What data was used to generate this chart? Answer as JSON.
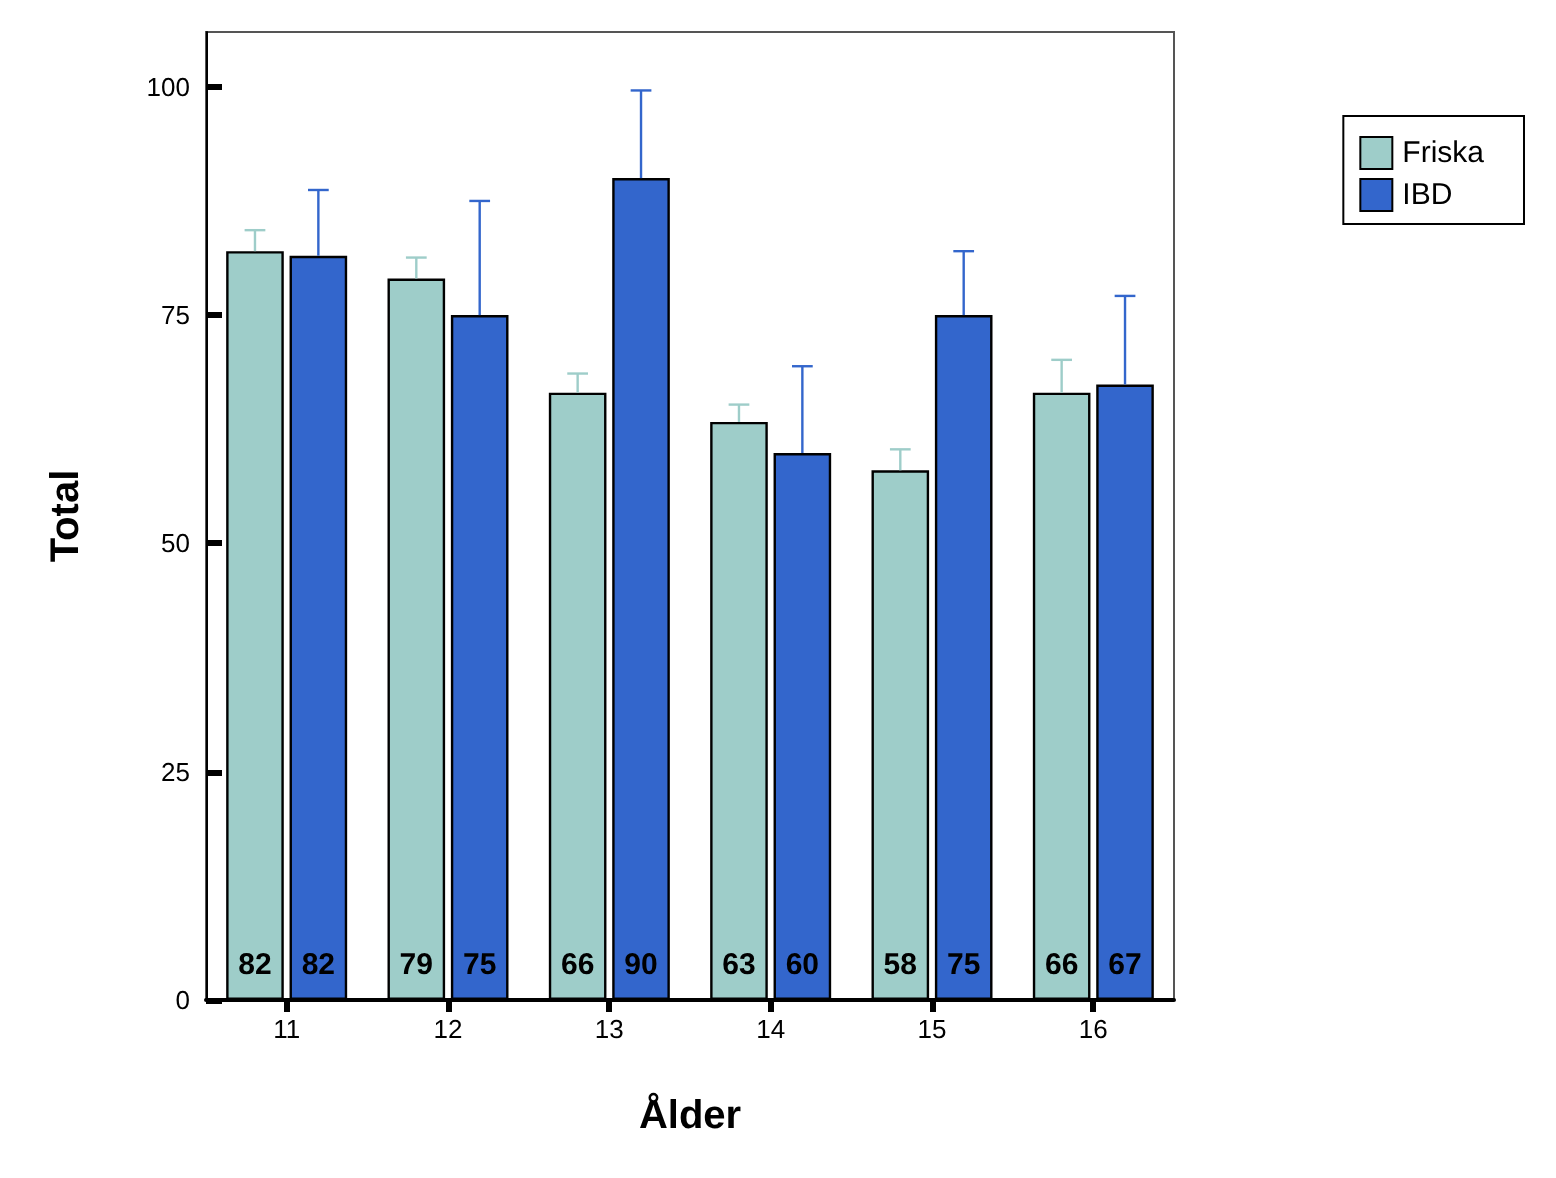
{
  "chart_data": {
    "type": "bar",
    "xlabel": "Ålder",
    "ylabel": "Total",
    "categories": [
      "11",
      "12",
      "13",
      "14",
      "15",
      "16"
    ],
    "series": [
      {
        "name": "Friska",
        "color": "#9ecdc9",
        "values": [
          82.0,
          79.0,
          66.5,
          63.3,
          58.0,
          66.5
        ],
        "value_labels": [
          "82",
          "79",
          "66",
          "63",
          "58",
          "66"
        ],
        "errors": [
          [
            82.0,
            84.3
          ],
          [
            79.0,
            81.3
          ],
          [
            66.5,
            68.6
          ],
          [
            63.3,
            65.2
          ],
          [
            58.0,
            60.3
          ],
          [
            66.5,
            70.1
          ]
        ]
      },
      {
        "name": "IBD",
        "color": "#3366cc",
        "values": [
          81.5,
          75.0,
          90.0,
          59.9,
          75.0,
          67.4
        ],
        "value_labels": [
          "82",
          "75",
          "90",
          "60",
          "75",
          "67"
        ],
        "errors": [
          [
            81.5,
            88.7
          ],
          [
            75.0,
            87.5
          ],
          [
            90.0,
            99.6
          ],
          [
            59.9,
            69.4
          ],
          [
            75.0,
            82.0
          ],
          [
            67.4,
            77.1
          ]
        ]
      }
    ],
    "ylim": [
      0,
      106
    ],
    "yticks": [
      0,
      25,
      50,
      75,
      100
    ],
    "grid": false,
    "legend": "top right"
  }
}
